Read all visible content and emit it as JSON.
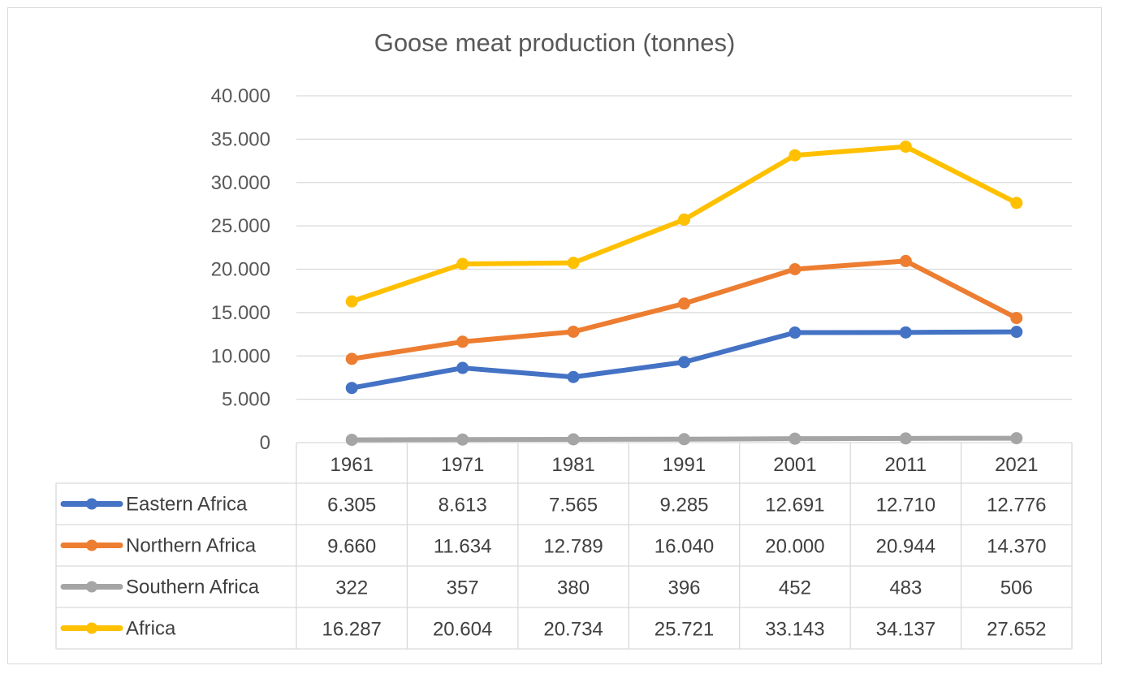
{
  "chart_data": {
    "type": "line",
    "title": "Goose meat production  (tonnes)",
    "categories": [
      "1961",
      "1971",
      "1981",
      "1991",
      "2001",
      "2011",
      "2021"
    ],
    "ylim": [
      0,
      40000
    ],
    "yticks": [
      {
        "value": 0,
        "label": "0"
      },
      {
        "value": 5000,
        "label": "5.000"
      },
      {
        "value": 10000,
        "label": "10.000"
      },
      {
        "value": 15000,
        "label": "15.000"
      },
      {
        "value": 20000,
        "label": "20.000"
      },
      {
        "value": 25000,
        "label": "25.000"
      },
      {
        "value": 30000,
        "label": "30.000"
      },
      {
        "value": 35000,
        "label": "35.000"
      },
      {
        "value": 40000,
        "label": "40.000"
      }
    ],
    "grid": true,
    "legend": "data-table",
    "series": [
      {
        "name": "Eastern Africa",
        "color": "#4472c4",
        "values": [
          6305,
          8613,
          7565,
          9285,
          12691,
          12710,
          12776
        ],
        "labels": [
          "6.305",
          "8.613",
          "7.565",
          "9.285",
          "12.691",
          "12.710",
          "12.776"
        ]
      },
      {
        "name": "Northern Africa",
        "color": "#ed7d31",
        "values": [
          9660,
          11634,
          12789,
          16040,
          20000,
          20944,
          14370
        ],
        "labels": [
          "9.660",
          "11.634",
          "12.789",
          "16.040",
          "20.000",
          "20.944",
          "14.370"
        ]
      },
      {
        "name": "Southern Africa",
        "color": "#a5a5a5",
        "values": [
          322,
          357,
          380,
          396,
          452,
          483,
          506
        ],
        "labels": [
          "322",
          "357",
          "380",
          "396",
          "452",
          "483",
          "506"
        ]
      },
      {
        "name": "Africa",
        "color": "#ffc000",
        "values": [
          16287,
          20604,
          20734,
          25721,
          33143,
          34137,
          27652
        ],
        "labels": [
          "16.287",
          "20.604",
          "20.734",
          "25.721",
          "33.143",
          "34.137",
          "27.652"
        ]
      }
    ]
  }
}
